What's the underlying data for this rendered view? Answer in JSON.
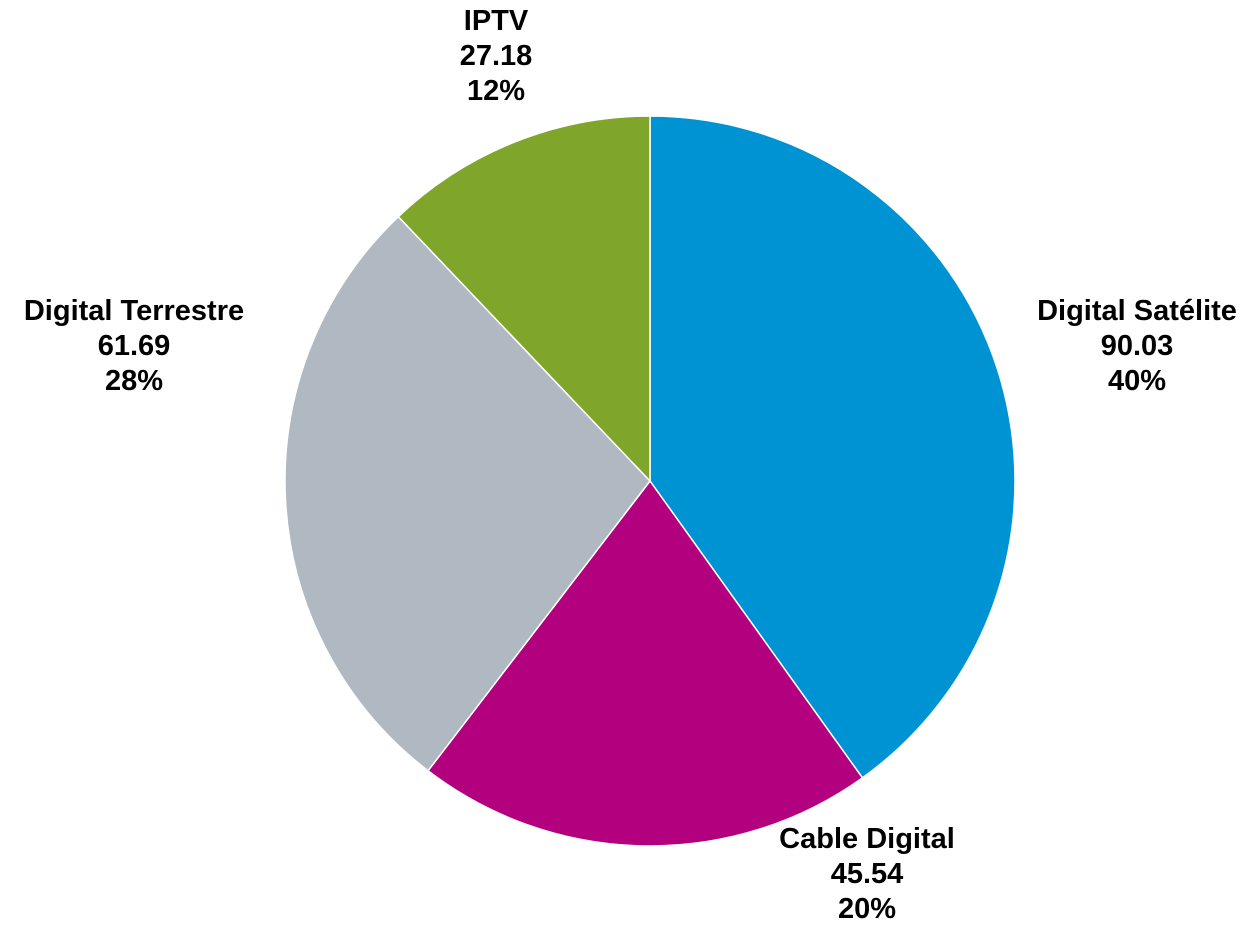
{
  "chart_data": {
    "type": "pie",
    "start_angle_deg": 0,
    "direction": "clockwise",
    "slices": [
      {
        "label": "Digital Satélite",
        "value": 90.03,
        "percent": "40%",
        "color": "#0093D3"
      },
      {
        "label": "Cable Digital",
        "value": 45.54,
        "percent": "20%",
        "color": "#B3007F"
      },
      {
        "label": "Digital Terrestre",
        "value": 61.69,
        "percent": "28%",
        "color": "#B0B8C1"
      },
      {
        "label": "IPTV",
        "value": 27.18,
        "percent": "12%",
        "color": "#7FA62B"
      }
    ]
  }
}
